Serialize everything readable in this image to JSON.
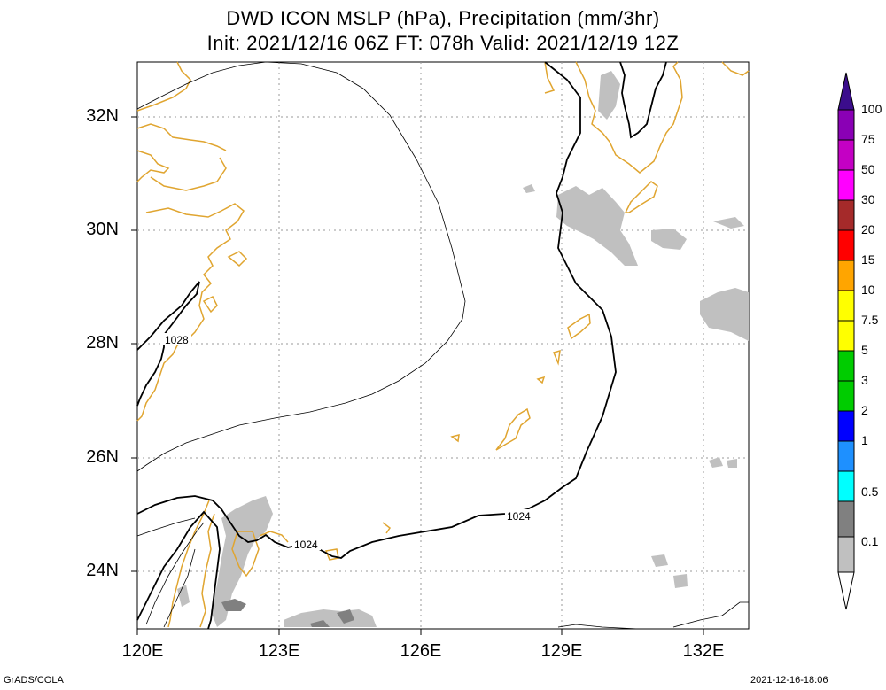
{
  "title": {
    "line1": "DWD ICON MSLP (hPa), Precipitation (mm/3hr)",
    "line2": "Init: 2021/12/16 06Z  FT: 078h  Valid: 2021/12/19 12Z"
  },
  "axes": {
    "lat_labels": [
      "32N",
      "30N",
      "28N",
      "26N",
      "24N"
    ],
    "lon_labels": [
      "120E",
      "123E",
      "126E",
      "129E",
      "132E"
    ]
  },
  "contour_labels": [
    "1028",
    "1024",
    "1024"
  ],
  "colorbar": {
    "labels": [
      "100",
      "75",
      "50",
      "30",
      "20",
      "15",
      "10",
      "7.5",
      "5",
      "3",
      "2",
      "1",
      "0.5",
      "0.1"
    ],
    "colors": [
      "#3b0d8c",
      "#8a00b5",
      "#c400c4",
      "#ff00ff",
      "#a52a2a",
      "#ff0000",
      "#ffa500",
      "#ffff00",
      "#00cc00",
      "#0000ff",
      "#1e90ff",
      "#00ffff",
      "#808080",
      "#c0c0c0"
    ]
  },
  "colors": {
    "coast": "#e0a530",
    "grid": "#999999",
    "contour": "#000000",
    "precip_light": "#c0c0c0",
    "precip_mid": "#808080"
  },
  "footer": {
    "left": "GrADS/COLA",
    "right": "2021-12-16-18:06"
  }
}
